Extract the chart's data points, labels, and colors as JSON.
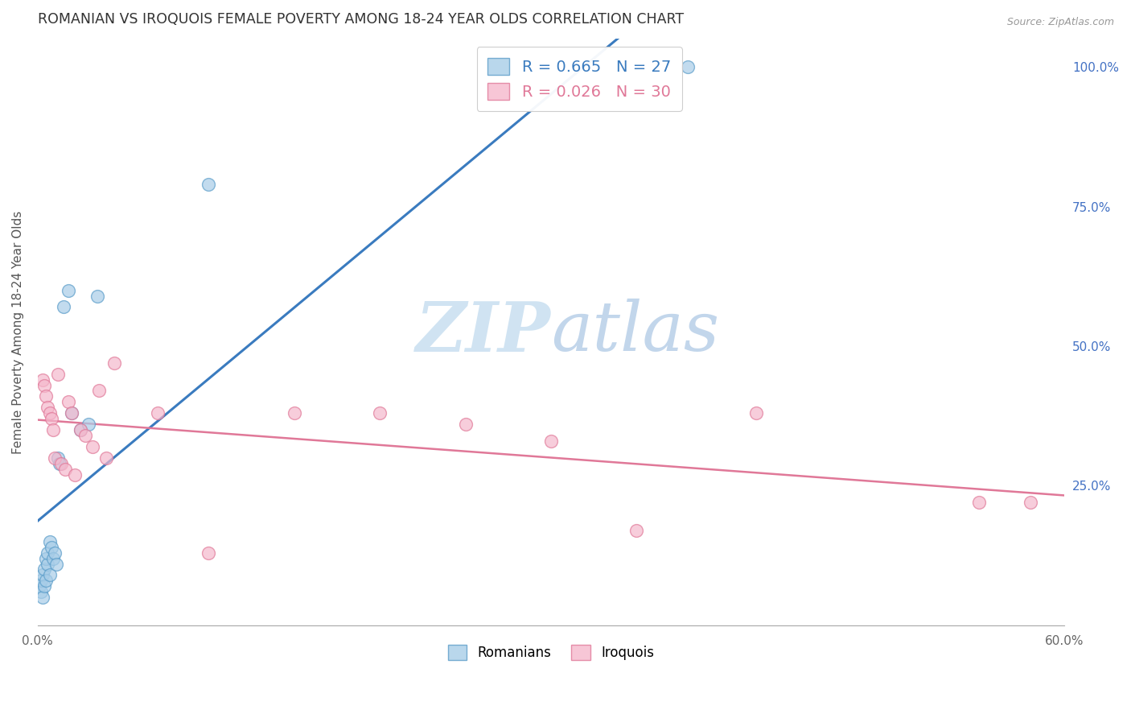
{
  "title": "ROMANIAN VS IROQUOIS FEMALE POVERTY AMONG 18-24 YEAR OLDS CORRELATION CHART",
  "source": "Source: ZipAtlas.com",
  "ylabel": "Female Poverty Among 18-24 Year Olds",
  "xlim": [
    0.0,
    0.6
  ],
  "ylim": [
    0.0,
    1.05
  ],
  "legend1_r": "0.665",
  "legend1_n": "27",
  "legend2_r": "0.026",
  "legend2_n": "30",
  "legend1_label": "Romanians",
  "legend2_label": "Iroquois",
  "blue_face_color": "#a8cde8",
  "blue_edge_color": "#5b9dc9",
  "blue_line_color": "#3a7bbf",
  "pink_face_color": "#f5b8cc",
  "pink_edge_color": "#e07898",
  "pink_line_color": "#e07898",
  "background_color": "#ffffff",
  "grid_color": "#d0d0d0",
  "watermark_zip_color": "#c8dff0",
  "watermark_atlas_color": "#c8dff0",
  "romanian_x": [
    0.001,
    0.002,
    0.002,
    0.003,
    0.003,
    0.004,
    0.004,
    0.005,
    0.005,
    0.006,
    0.006,
    0.007,
    0.007,
    0.008,
    0.009,
    0.01,
    0.011,
    0.012,
    0.013,
    0.015,
    0.018,
    0.02,
    0.025,
    0.03,
    0.035,
    0.1,
    0.38
  ],
  "romanian_y": [
    0.07,
    0.06,
    0.08,
    0.05,
    0.09,
    0.07,
    0.1,
    0.08,
    0.12,
    0.11,
    0.13,
    0.09,
    0.15,
    0.14,
    0.12,
    0.13,
    0.11,
    0.3,
    0.29,
    0.57,
    0.6,
    0.38,
    0.35,
    0.36,
    0.59,
    0.79,
    1.0
  ],
  "iroquois_x": [
    0.003,
    0.004,
    0.005,
    0.006,
    0.007,
    0.008,
    0.009,
    0.01,
    0.012,
    0.014,
    0.016,
    0.018,
    0.02,
    0.022,
    0.025,
    0.028,
    0.032,
    0.036,
    0.04,
    0.045,
    0.07,
    0.1,
    0.15,
    0.2,
    0.25,
    0.3,
    0.35,
    0.42,
    0.55,
    0.58
  ],
  "iroquois_y": [
    0.44,
    0.43,
    0.41,
    0.39,
    0.38,
    0.37,
    0.35,
    0.3,
    0.45,
    0.29,
    0.28,
    0.4,
    0.38,
    0.27,
    0.35,
    0.34,
    0.32,
    0.42,
    0.3,
    0.47,
    0.38,
    0.13,
    0.38,
    0.38,
    0.36,
    0.33,
    0.17,
    0.38,
    0.22,
    0.22
  ]
}
